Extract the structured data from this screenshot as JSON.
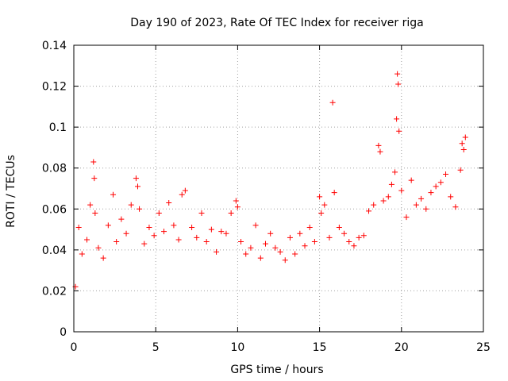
{
  "chart_data": {
    "type": "scatter",
    "title": "Day 190 of 2023, Rate Of TEC Index for receiver riga",
    "xlabel": "GPS time / hours",
    "ylabel": "ROTI / TECUs",
    "xlim": [
      0,
      25
    ],
    "ylim": [
      0,
      0.14
    ],
    "xticks": [
      0,
      5,
      10,
      15,
      20,
      25
    ],
    "xtick_labels": [
      "0",
      "5",
      "10",
      "15",
      "20",
      "25"
    ],
    "yticks": [
      0,
      0.02,
      0.04,
      0.06,
      0.08,
      0.1,
      0.12,
      0.14
    ],
    "ytick_labels": [
      "0",
      "0.02",
      "0.04",
      "0.06",
      "0.08",
      "0.1",
      "0.12",
      "0.14"
    ],
    "grid": true,
    "marker": "+",
    "marker_color": "#ff0000",
    "series": [
      {
        "name": "ROTI",
        "x": [
          0.1,
          0.3,
          0.5,
          0.8,
          1.0,
          1.2,
          1.25,
          1.3,
          1.5,
          1.8,
          2.1,
          2.4,
          2.6,
          2.9,
          3.2,
          3.5,
          3.8,
          3.9,
          4.0,
          4.3,
          4.6,
          4.9,
          5.2,
          5.5,
          5.8,
          6.1,
          6.4,
          6.6,
          6.8,
          7.2,
          7.5,
          7.8,
          8.1,
          8.4,
          8.7,
          9.0,
          9.3,
          9.6,
          9.9,
          10.0,
          10.2,
          10.5,
          10.8,
          11.1,
          11.4,
          11.7,
          12.0,
          12.3,
          12.6,
          12.9,
          13.2,
          13.5,
          13.8,
          14.1,
          14.4,
          14.7,
          15.0,
          15.1,
          15.3,
          15.6,
          15.8,
          15.9,
          16.2,
          16.5,
          16.8,
          17.1,
          17.4,
          17.7,
          18.0,
          18.3,
          18.6,
          18.7,
          18.9,
          19.2,
          19.4,
          19.6,
          19.7,
          19.75,
          19.8,
          19.85,
          20.0,
          20.3,
          20.6,
          20.9,
          21.2,
          21.5,
          21.8,
          22.1,
          22.4,
          22.7,
          23.0,
          23.3,
          23.6,
          23.7,
          23.8,
          23.9
        ],
        "y": [
          0.022,
          0.051,
          0.038,
          0.045,
          0.062,
          0.083,
          0.075,
          0.058,
          0.041,
          0.036,
          0.052,
          0.067,
          0.044,
          0.055,
          0.048,
          0.062,
          0.075,
          0.071,
          0.06,
          0.043,
          0.051,
          0.047,
          0.058,
          0.049,
          0.063,
          0.052,
          0.045,
          0.067,
          0.069,
          0.051,
          0.046,
          0.058,
          0.044,
          0.05,
          0.039,
          0.049,
          0.048,
          0.058,
          0.064,
          0.061,
          0.044,
          0.038,
          0.041,
          0.052,
          0.036,
          0.043,
          0.048,
          0.041,
          0.039,
          0.035,
          0.046,
          0.038,
          0.048,
          0.042,
          0.051,
          0.044,
          0.066,
          0.058,
          0.062,
          0.046,
          0.112,
          0.068,
          0.051,
          0.048,
          0.044,
          0.042,
          0.046,
          0.047,
          0.059,
          0.062,
          0.091,
          0.088,
          0.064,
          0.066,
          0.072,
          0.078,
          0.104,
          0.126,
          0.121,
          0.098,
          0.069,
          0.056,
          0.074,
          0.062,
          0.065,
          0.06,
          0.068,
          0.071,
          0.073,
          0.077,
          0.066,
          0.061,
          0.079,
          0.092,
          0.089,
          0.095
        ]
      }
    ]
  }
}
